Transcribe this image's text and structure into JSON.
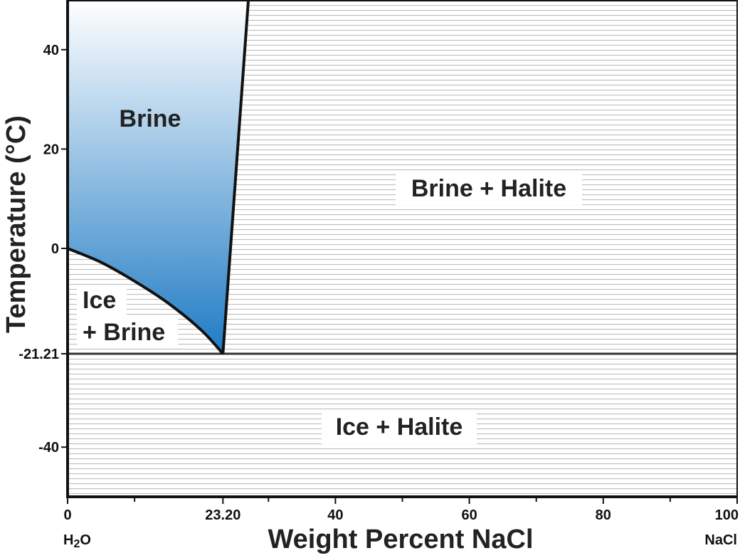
{
  "chart_data": {
    "type": "phase-diagram",
    "xlabel": "Weight Percent NaCl",
    "ylabel": "Temperature (°C)",
    "xlim": [
      0,
      100
    ],
    "ylim": [
      -50,
      50
    ],
    "x_ticks": [
      {
        "value": 0,
        "label": "0"
      },
      {
        "value": 23.2,
        "label": "23.20"
      },
      {
        "value": 40,
        "label": "40"
      },
      {
        "value": 60,
        "label": "60"
      },
      {
        "value": 80,
        "label": "80"
      },
      {
        "value": 100,
        "label": "100"
      }
    ],
    "x_minor_ticks": [
      10,
      30,
      50,
      70,
      90
    ],
    "y_ticks": [
      {
        "value": 40,
        "label": "40"
      },
      {
        "value": 20,
        "label": "20"
      },
      {
        "value": 0,
        "label": "0"
      },
      {
        "value": -21.21,
        "label": "-21.21"
      },
      {
        "value": -40,
        "label": "-40"
      }
    ],
    "end_labels": {
      "left_formula": "H",
      "left_subscript": "2",
      "left_suffix": "O",
      "right": "NaCl"
    },
    "eutectic": {
      "x": 23.2,
      "y": -21.21
    },
    "ice_liquidus": [
      [
        0,
        0
      ],
      [
        5,
        -2.8
      ],
      [
        10,
        -6.6
      ],
      [
        15,
        -11
      ],
      [
        20,
        -16.5
      ],
      [
        23.2,
        -21.21
      ]
    ],
    "halite_liquidus": [
      [
        23.2,
        -21.21
      ],
      [
        27,
        50
      ]
    ],
    "regions": [
      {
        "name": "brine",
        "label": "Brine"
      },
      {
        "name": "brine-halite",
        "label": "Brine + Halite"
      },
      {
        "name": "ice-brine",
        "label_line1": "Ice",
        "label_line2": "+ Brine"
      },
      {
        "name": "ice-halite",
        "label": "Ice + Halite"
      }
    ],
    "colors": {
      "brine_top": "#ffffff",
      "brine_bottom": "#1f7bc4",
      "hatch": "#bdbdbd",
      "line": "#111111"
    }
  }
}
